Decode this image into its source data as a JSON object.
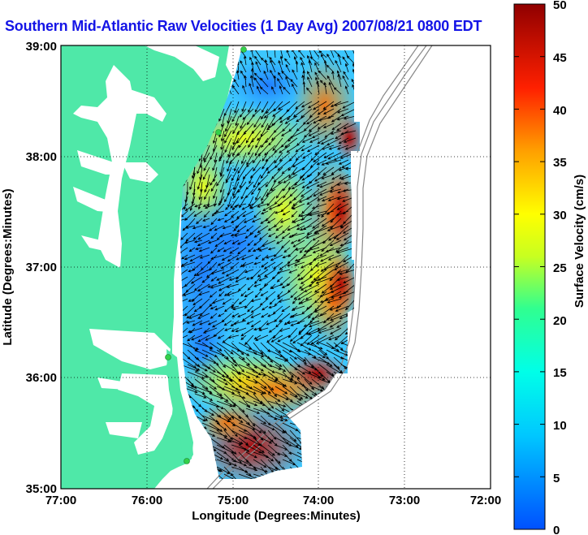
{
  "title": "Southern Mid-Atlantic Raw Velocities (1 Day Avg) 2007/08/21 0800 EDT",
  "map": {
    "xlabel": "Longitude (Degrees:Minutes)",
    "ylabel": "Latitude (Degrees:Minutes)",
    "xticks": [
      "77:00",
      "76:00",
      "75:00",
      "74:00",
      "73:00",
      "72:00"
    ],
    "yticks": [
      "39:00",
      "38:00",
      "37:00",
      "36:00",
      "35:00"
    ],
    "grid": "dotted"
  },
  "colorbar": {
    "label": "Surface Velocity (cm/s)",
    "ticks": [
      "50",
      "45",
      "40",
      "35",
      "30",
      "25",
      "20",
      "15",
      "10",
      "5",
      "0"
    ],
    "range": [
      0,
      50
    ]
  },
  "colors": {
    "land": "#4fe8a8",
    "title": "#1414e6",
    "station": "#33d04a"
  },
  "stations": 4
}
